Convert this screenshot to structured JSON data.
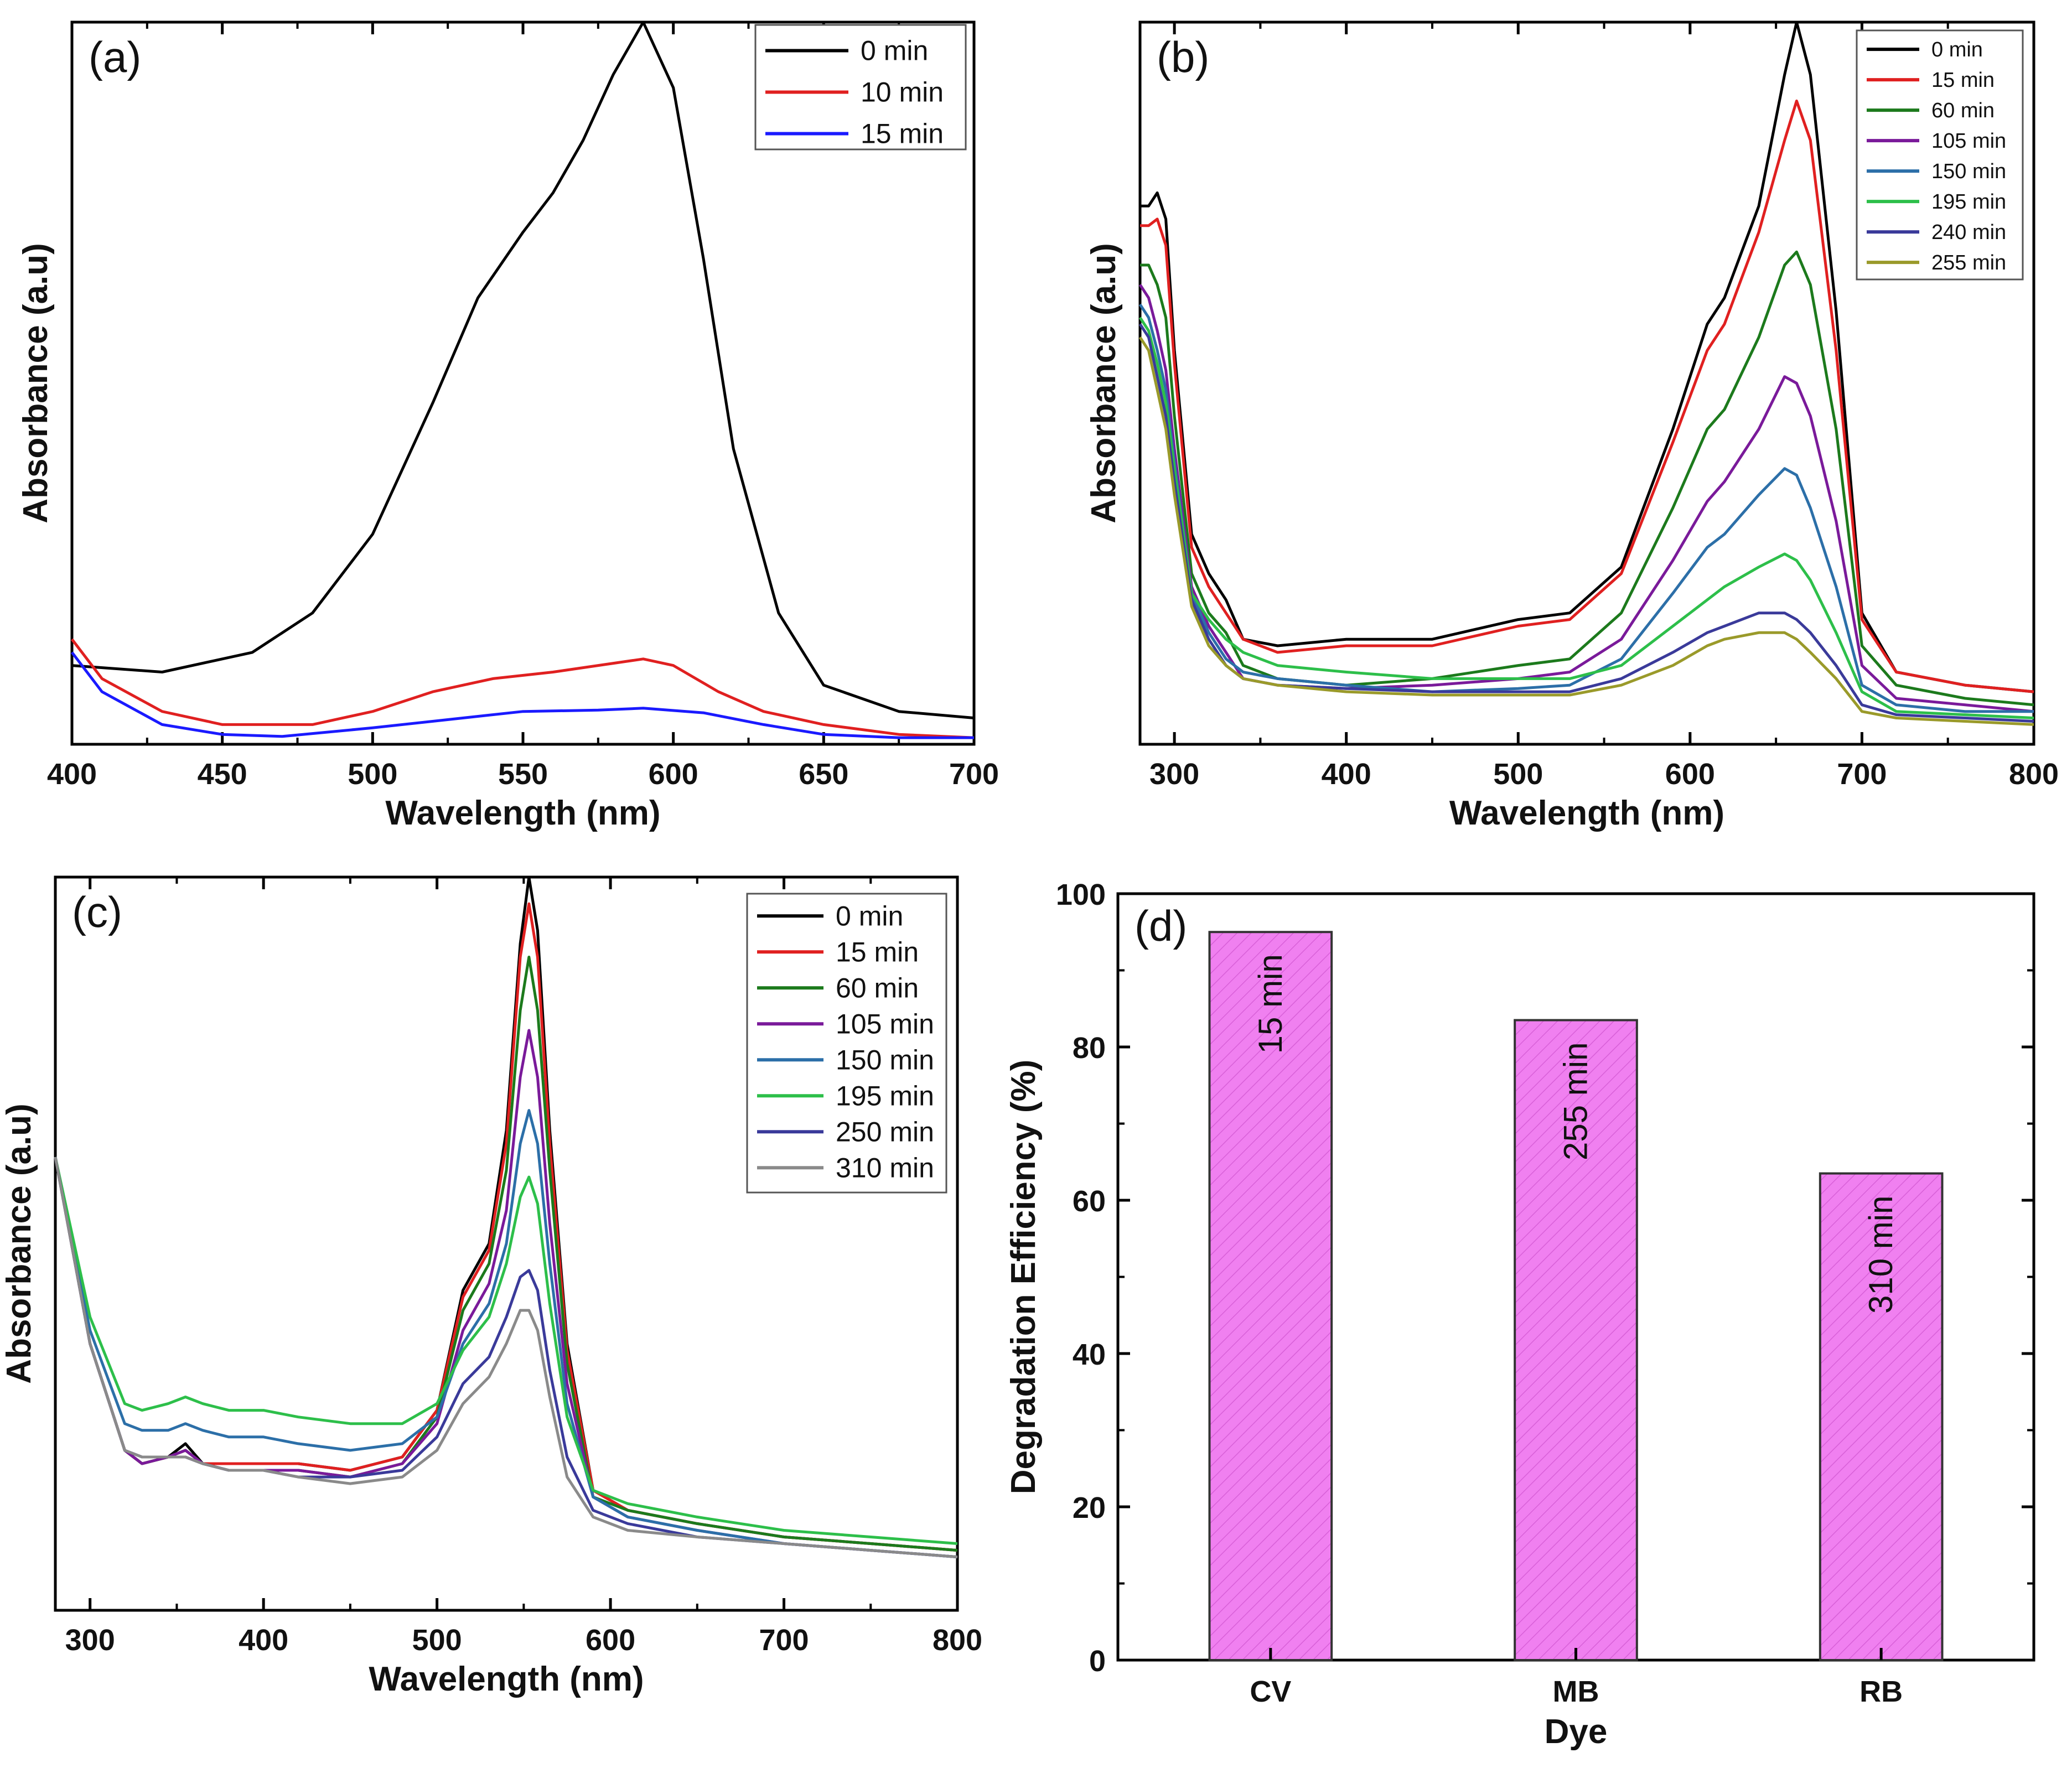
{
  "chart_data": [
    {
      "panel": "(a)",
      "type": "line",
      "title": "",
      "xlabel": "Wavelength (nm)",
      "ylabel": "Absorbance (a.u)",
      "xlim": [
        400,
        700
      ],
      "ylim": [
        0,
        1.1
      ],
      "xticks": [
        400,
        450,
        500,
        550,
        600,
        650,
        700
      ],
      "legend_position": "top-right",
      "series": [
        {
          "name": "0 min",
          "color": "#000000",
          "x": [
            400,
            430,
            460,
            480,
            500,
            520,
            535,
            550,
            560,
            570,
            580,
            590,
            600,
            610,
            620,
            635,
            650,
            675,
            700
          ],
          "y": [
            0.12,
            0.11,
            0.14,
            0.2,
            0.32,
            0.52,
            0.68,
            0.78,
            0.84,
            0.92,
            1.02,
            1.1,
            1.0,
            0.74,
            0.45,
            0.2,
            0.09,
            0.05,
            0.04
          ]
        },
        {
          "name": "10 min",
          "color": "#e02020",
          "x": [
            400,
            410,
            430,
            450,
            480,
            500,
            520,
            540,
            560,
            575,
            590,
            600,
            615,
            630,
            650,
            675,
            700
          ],
          "y": [
            0.16,
            0.1,
            0.05,
            0.03,
            0.03,
            0.05,
            0.08,
            0.1,
            0.11,
            0.12,
            0.13,
            0.12,
            0.08,
            0.05,
            0.03,
            0.015,
            0.01
          ]
        },
        {
          "name": "15 min",
          "color": "#1a1aff",
          "x": [
            400,
            410,
            430,
            450,
            470,
            500,
            530,
            550,
            575,
            590,
            610,
            630,
            650,
            675,
            700
          ],
          "y": [
            0.14,
            0.08,
            0.03,
            0.015,
            0.012,
            0.025,
            0.04,
            0.05,
            0.052,
            0.055,
            0.048,
            0.03,
            0.015,
            0.01,
            0.01
          ]
        }
      ]
    },
    {
      "panel": "(b)",
      "type": "line",
      "title": "",
      "xlabel": "Wavelength (nm)",
      "ylabel": "Absorbance (a.u)",
      "xlim": [
        280,
        800
      ],
      "ylim": [
        0,
        1.1
      ],
      "xticks": [
        300,
        400,
        500,
        600,
        700,
        800
      ],
      "legend_position": "top-right",
      "x": [
        280,
        285,
        290,
        295,
        300,
        310,
        320,
        330,
        340,
        360,
        400,
        450,
        500,
        530,
        560,
        590,
        610,
        620,
        640,
        655,
        662,
        670,
        685,
        700,
        720,
        760,
        800
      ],
      "series": [
        {
          "name": "0 min",
          "color": "#000000",
          "y": [
            0.82,
            0.82,
            0.84,
            0.8,
            0.6,
            0.32,
            0.26,
            0.22,
            0.16,
            0.15,
            0.16,
            0.16,
            0.19,
            0.2,
            0.27,
            0.48,
            0.64,
            0.68,
            0.82,
            1.02,
            1.1,
            1.02,
            0.66,
            0.2,
            0.11,
            0.09,
            0.08
          ]
        },
        {
          "name": "15 min",
          "color": "#e02020",
          "y": [
            0.79,
            0.79,
            0.8,
            0.76,
            0.58,
            0.3,
            0.24,
            0.2,
            0.16,
            0.14,
            0.15,
            0.15,
            0.18,
            0.19,
            0.26,
            0.46,
            0.6,
            0.64,
            0.78,
            0.92,
            0.98,
            0.92,
            0.6,
            0.19,
            0.11,
            0.09,
            0.08
          ]
        },
        {
          "name": "60 min",
          "color": "#1c7a1c",
          "y": [
            0.73,
            0.73,
            0.7,
            0.65,
            0.5,
            0.26,
            0.2,
            0.17,
            0.12,
            0.1,
            0.09,
            0.1,
            0.12,
            0.13,
            0.2,
            0.36,
            0.48,
            0.51,
            0.62,
            0.73,
            0.75,
            0.7,
            0.48,
            0.15,
            0.09,
            0.07,
            0.06
          ]
        },
        {
          "name": "105 min",
          "color": "#7a1a9a",
          "y": [
            0.7,
            0.68,
            0.63,
            0.57,
            0.45,
            0.24,
            0.18,
            0.14,
            0.1,
            0.09,
            0.085,
            0.09,
            0.1,
            0.11,
            0.16,
            0.28,
            0.37,
            0.4,
            0.48,
            0.56,
            0.55,
            0.5,
            0.34,
            0.12,
            0.07,
            0.06,
            0.05
          ]
        },
        {
          "name": "150 min",
          "color": "#2c6fa8",
          "y": [
            0.67,
            0.65,
            0.6,
            0.54,
            0.43,
            0.23,
            0.17,
            0.13,
            0.11,
            0.1,
            0.09,
            0.08,
            0.085,
            0.09,
            0.13,
            0.23,
            0.3,
            0.32,
            0.38,
            0.42,
            0.41,
            0.36,
            0.24,
            0.09,
            0.06,
            0.05,
            0.05
          ]
        },
        {
          "name": "195 min",
          "color": "#2dbf4a",
          "y": [
            0.65,
            0.63,
            0.58,
            0.52,
            0.42,
            0.23,
            0.19,
            0.16,
            0.14,
            0.12,
            0.11,
            0.1,
            0.1,
            0.1,
            0.12,
            0.18,
            0.22,
            0.24,
            0.27,
            0.29,
            0.28,
            0.25,
            0.17,
            0.08,
            0.05,
            0.045,
            0.04
          ]
        },
        {
          "name": "240 min",
          "color": "#3a3a9a",
          "y": [
            0.64,
            0.62,
            0.56,
            0.5,
            0.4,
            0.22,
            0.16,
            0.12,
            0.1,
            0.09,
            0.085,
            0.08,
            0.08,
            0.08,
            0.1,
            0.14,
            0.17,
            0.18,
            0.2,
            0.2,
            0.19,
            0.17,
            0.12,
            0.06,
            0.045,
            0.04,
            0.035
          ]
        },
        {
          "name": "255 min",
          "color": "#9a9a2a",
          "y": [
            0.62,
            0.6,
            0.54,
            0.48,
            0.38,
            0.21,
            0.15,
            0.12,
            0.1,
            0.09,
            0.08,
            0.075,
            0.075,
            0.075,
            0.09,
            0.12,
            0.15,
            0.16,
            0.17,
            0.17,
            0.16,
            0.14,
            0.1,
            0.05,
            0.04,
            0.035,
            0.03
          ]
        }
      ]
    },
    {
      "panel": "(c)",
      "type": "line",
      "title": "",
      "xlabel": "Wavelength (nm)",
      "ylabel": "Absorbance (a.u)",
      "xlim": [
        280,
        800
      ],
      "ylim": [
        0,
        1.1
      ],
      "xticks": [
        300,
        400,
        500,
        600,
        700,
        800
      ],
      "legend_position": "top-right",
      "x": [
        280,
        300,
        320,
        330,
        345,
        355,
        365,
        380,
        400,
        420,
        450,
        480,
        500,
        515,
        530,
        540,
        548,
        553,
        558,
        565,
        575,
        590,
        610,
        650,
        700,
        750,
        800
      ],
      "series": [
        {
          "name": "0 min",
          "color": "#000000",
          "y": [
            0.68,
            0.4,
            0.24,
            0.22,
            0.23,
            0.25,
            0.22,
            0.22,
            0.22,
            0.22,
            0.21,
            0.23,
            0.3,
            0.48,
            0.55,
            0.72,
            1.0,
            1.1,
            1.02,
            0.72,
            0.4,
            0.18,
            0.15,
            0.13,
            0.11,
            0.1,
            0.09
          ]
        },
        {
          "name": "15 min",
          "color": "#e02020",
          "y": [
            0.68,
            0.4,
            0.24,
            0.22,
            0.23,
            0.24,
            0.22,
            0.22,
            0.22,
            0.22,
            0.21,
            0.23,
            0.3,
            0.47,
            0.54,
            0.7,
            0.98,
            1.06,
            0.98,
            0.7,
            0.39,
            0.18,
            0.15,
            0.13,
            0.11,
            0.1,
            0.09
          ]
        },
        {
          "name": "60 min",
          "color": "#1c7a1c",
          "y": [
            0.68,
            0.4,
            0.24,
            0.22,
            0.23,
            0.24,
            0.22,
            0.21,
            0.21,
            0.21,
            0.2,
            0.22,
            0.29,
            0.45,
            0.52,
            0.66,
            0.9,
            0.98,
            0.9,
            0.66,
            0.37,
            0.17,
            0.15,
            0.13,
            0.11,
            0.1,
            0.09
          ]
        },
        {
          "name": "105 min",
          "color": "#7a1a9a",
          "y": [
            0.68,
            0.4,
            0.24,
            0.22,
            0.23,
            0.24,
            0.22,
            0.21,
            0.21,
            0.21,
            0.2,
            0.22,
            0.28,
            0.42,
            0.49,
            0.6,
            0.8,
            0.87,
            0.8,
            0.58,
            0.34,
            0.17,
            0.14,
            0.12,
            0.1,
            0.09,
            0.08
          ]
        },
        {
          "name": "150 min",
          "color": "#2c6fa8",
          "y": [
            0.68,
            0.42,
            0.28,
            0.27,
            0.27,
            0.28,
            0.27,
            0.26,
            0.26,
            0.25,
            0.24,
            0.25,
            0.29,
            0.4,
            0.46,
            0.55,
            0.7,
            0.75,
            0.7,
            0.52,
            0.31,
            0.17,
            0.14,
            0.12,
            0.1,
            0.09,
            0.08
          ]
        },
        {
          "name": "195 min",
          "color": "#2dbf4a",
          "y": [
            0.68,
            0.44,
            0.31,
            0.3,
            0.31,
            0.32,
            0.31,
            0.3,
            0.3,
            0.29,
            0.28,
            0.28,
            0.31,
            0.39,
            0.44,
            0.52,
            0.62,
            0.65,
            0.61,
            0.46,
            0.29,
            0.18,
            0.16,
            0.14,
            0.12,
            0.11,
            0.1
          ]
        },
        {
          "name": "250 min",
          "color": "#3a3a9a",
          "y": [
            0.68,
            0.4,
            0.24,
            0.23,
            0.23,
            0.23,
            0.22,
            0.21,
            0.21,
            0.2,
            0.2,
            0.21,
            0.26,
            0.34,
            0.38,
            0.44,
            0.5,
            0.51,
            0.48,
            0.36,
            0.23,
            0.15,
            0.13,
            0.11,
            0.1,
            0.09,
            0.08
          ]
        },
        {
          "name": "310 min",
          "color": "#8a8a8a",
          "y": [
            0.68,
            0.4,
            0.24,
            0.23,
            0.23,
            0.23,
            0.22,
            0.21,
            0.21,
            0.2,
            0.19,
            0.2,
            0.24,
            0.31,
            0.35,
            0.4,
            0.45,
            0.45,
            0.42,
            0.32,
            0.2,
            0.14,
            0.12,
            0.11,
            0.1,
            0.09,
            0.08
          ]
        }
      ]
    },
    {
      "panel": "(d)",
      "type": "bar",
      "title": "",
      "xlabel": "Dye",
      "ylabel": "Degradation Efficiency (%)",
      "ylim": [
        0,
        100
      ],
      "yticks": [
        0,
        20,
        40,
        60,
        80,
        100
      ],
      "categories": [
        "CV",
        "MB",
        "RB"
      ],
      "values": [
        95,
        83.5,
        63.5
      ],
      "bar_labels": [
        "15 min",
        "255 min",
        "310 min"
      ],
      "bar_color": "#f080f0",
      "bar_edge_color": "#333333"
    }
  ]
}
